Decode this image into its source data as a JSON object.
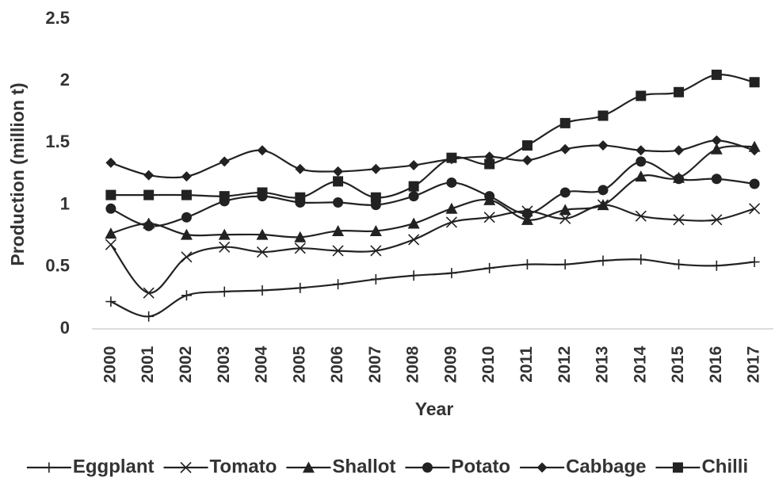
{
  "chart_data": {
    "type": "line",
    "x_label": "Year",
    "y_label": "Production (million t)",
    "categories": [
      "2000",
      "2001",
      "2002",
      "2003",
      "2004",
      "2005",
      "2006",
      "2007",
      "2008",
      "2009",
      "2010",
      "2011",
      "2012",
      "2013",
      "2014",
      "2015",
      "2016",
      "2017"
    ],
    "ylim": [
      0,
      2.5
    ],
    "yticks": [
      0,
      0.5,
      1,
      1.5,
      2,
      2.5
    ],
    "grid": false,
    "legend": "bottom",
    "series": [
      {
        "name": "Eggplant",
        "color": "#222222",
        "marker": "plus",
        "values": [
          0.22,
          0.1,
          0.27,
          0.3,
          0.31,
          0.33,
          0.36,
          0.4,
          0.43,
          0.45,
          0.49,
          0.52,
          0.52,
          0.55,
          0.56,
          0.52,
          0.51,
          0.54
        ]
      },
      {
        "name": "Tomato",
        "color": "#222222",
        "marker": "cross",
        "values": [
          0.68,
          0.29,
          0.58,
          0.66,
          0.62,
          0.65,
          0.63,
          0.63,
          0.72,
          0.86,
          0.9,
          0.95,
          0.89,
          1.0,
          0.91,
          0.88,
          0.88,
          0.97
        ]
      },
      {
        "name": "Shallot",
        "color": "#222222",
        "marker": "triangle",
        "values": [
          0.77,
          0.85,
          0.76,
          0.76,
          0.76,
          0.74,
          0.79,
          0.79,
          0.85,
          0.97,
          1.04,
          0.88,
          0.96,
          1.0,
          1.23,
          1.22,
          1.45,
          1.47
        ]
      },
      {
        "name": "Potato",
        "color": "#222222",
        "marker": "circle",
        "values": [
          0.97,
          0.83,
          0.9,
          1.03,
          1.07,
          1.02,
          1.02,
          1.0,
          1.07,
          1.18,
          1.07,
          0.93,
          1.1,
          1.12,
          1.35,
          1.21,
          1.21,
          1.17
        ]
      },
      {
        "name": "Cabbage",
        "color": "#222222",
        "marker": "diamond",
        "values": [
          1.34,
          1.24,
          1.23,
          1.35,
          1.44,
          1.29,
          1.27,
          1.29,
          1.32,
          1.37,
          1.39,
          1.36,
          1.45,
          1.48,
          1.44,
          1.44,
          1.52,
          1.44
        ]
      },
      {
        "name": "Chilli",
        "color": "#222222",
        "marker": "square",
        "values": [
          1.08,
          1.08,
          1.08,
          1.07,
          1.1,
          1.06,
          1.19,
          1.06,
          1.15,
          1.38,
          1.33,
          1.48,
          1.66,
          1.72,
          1.88,
          1.91,
          2.05,
          1.99
        ]
      }
    ]
  }
}
